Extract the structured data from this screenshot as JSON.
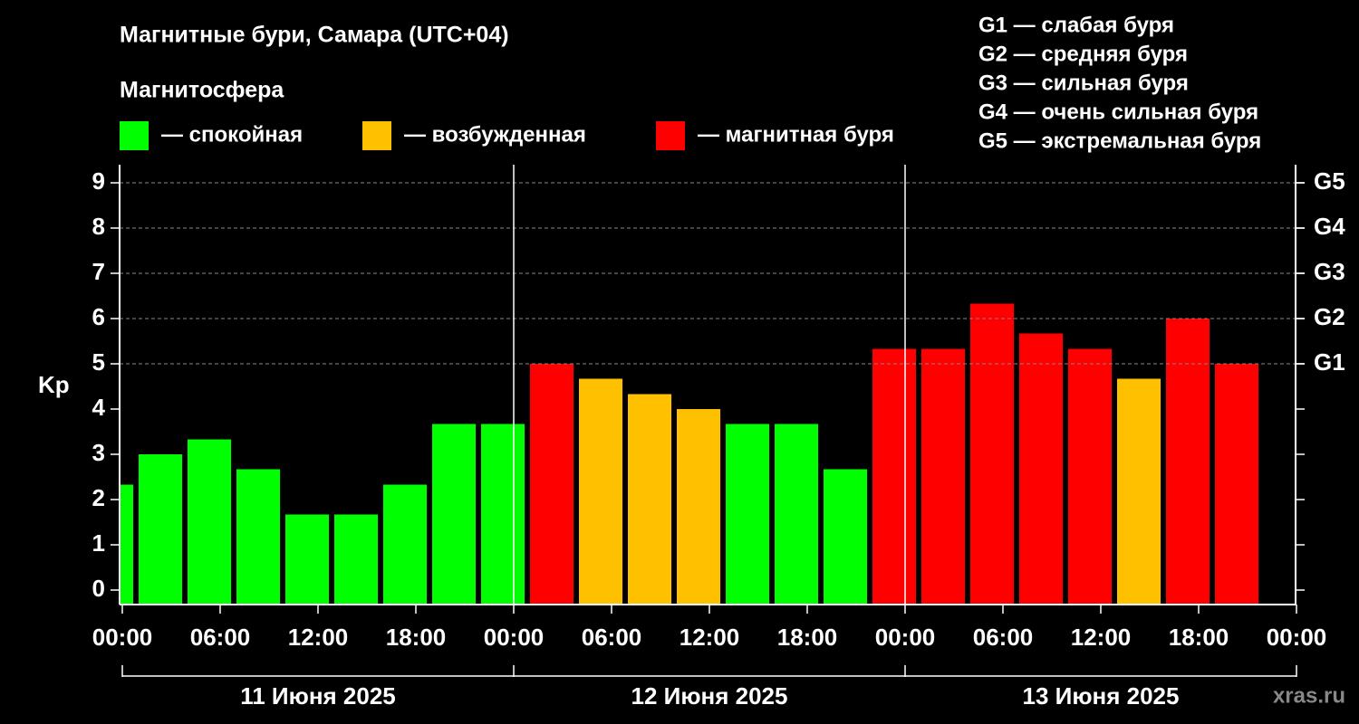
{
  "chart_data": {
    "type": "bar",
    "title": "Магнитные бури, Самара (UTC+04)",
    "legend_title": "Магнитосфера",
    "legend": [
      {
        "label": "— спокойная",
        "color": "#00ff00"
      },
      {
        "label": "— возбужденная",
        "color": "#ffc000"
      },
      {
        "label": "— магнитная буря",
        "color": "#ff0000"
      }
    ],
    "scale_notes": [
      "G1 — слабая буря",
      "G2 — средняя буря",
      "G3 — сильная буря",
      "G4 — очень сильная буря",
      "G5 — экстремальная буря"
    ],
    "ylabel": "Kp",
    "x": [
      -2,
      1,
      4,
      7,
      10,
      13,
      16,
      19,
      22,
      25,
      28,
      31,
      34,
      37,
      40,
      43,
      46,
      49,
      52,
      55,
      58,
      61,
      64,
      67
    ],
    "bar_width": 2.67,
    "values": [
      2.33,
      3,
      3.33,
      2.67,
      1.67,
      1.67,
      2.33,
      3.67,
      3.67,
      5,
      4.67,
      4.33,
      4,
      3.67,
      3.67,
      2.67,
      5.33,
      5.33,
      6.33,
      5.67,
      5.33,
      4.67,
      6,
      5
    ],
    "colors": [
      "#00ff00",
      "#00ff00",
      "#00ff00",
      "#00ff00",
      "#00ff00",
      "#00ff00",
      "#00ff00",
      "#00ff00",
      "#00ff00",
      "#ff0000",
      "#ffc000",
      "#ffc000",
      "#ffc000",
      "#00ff00",
      "#00ff00",
      "#00ff00",
      "#ff0000",
      "#ff0000",
      "#ff0000",
      "#ff0000",
      "#ff0000",
      "#ffc000",
      "#ff0000",
      "#ff0000"
    ],
    "xlim": [
      0,
      72
    ],
    "xticks": [
      {
        "value": 0,
        "label": "00:00"
      },
      {
        "value": 6,
        "label": "06:00"
      },
      {
        "value": 12,
        "label": "12:00"
      },
      {
        "value": 18,
        "label": "18:00"
      },
      {
        "value": 24,
        "label": "00:00"
      },
      {
        "value": 30,
        "label": "06:00"
      },
      {
        "value": 36,
        "label": "12:00"
      },
      {
        "value": 42,
        "label": "18:00"
      },
      {
        "value": 48,
        "label": "00:00"
      },
      {
        "value": 54,
        "label": "06:00"
      },
      {
        "value": 60,
        "label": "12:00"
      },
      {
        "value": 66,
        "label": "18:00"
      },
      {
        "value": 72,
        "label": "00:00"
      }
    ],
    "days": [
      "11 Июня 2025",
      "12 Июня 2025",
      "13 Июня 2025"
    ],
    "day_bounds": [
      0,
      24,
      48,
      72
    ],
    "ylim": [
      -0.32,
      9.4
    ],
    "yticks": [
      0,
      1,
      2,
      3,
      4,
      5,
      6,
      7,
      8,
      9
    ],
    "y2ticks": [
      {
        "value": 5,
        "label": "G1"
      },
      {
        "value": 6,
        "label": "G2"
      },
      {
        "value": 7,
        "label": "G3"
      },
      {
        "value": 8,
        "label": "G4"
      },
      {
        "value": 9,
        "label": "G5"
      }
    ],
    "grid": true,
    "watermark": "xras.ru"
  }
}
